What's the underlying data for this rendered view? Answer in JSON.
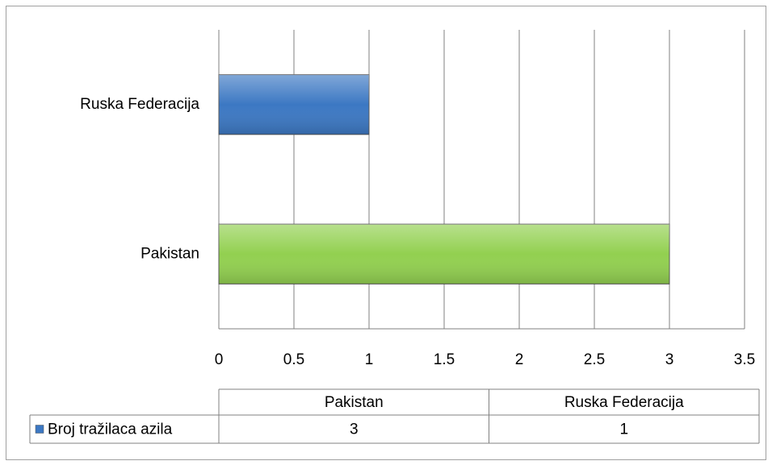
{
  "chart_data": {
    "type": "bar",
    "orientation": "horizontal",
    "categories": [
      "Pakistan",
      "Ruska Federacija"
    ],
    "series": [
      {
        "name": "Broj tražilaca azila",
        "color": "#3c78c3",
        "point_colors": [
          "#92d050",
          "#3c78c3"
        ],
        "values": [
          3,
          1
        ]
      }
    ],
    "xlim": [
      0,
      3.5
    ],
    "xticks": [
      0,
      0.5,
      1,
      1.5,
      2,
      2.5,
      3,
      3.5
    ],
    "grid": true,
    "data_table": true
  }
}
